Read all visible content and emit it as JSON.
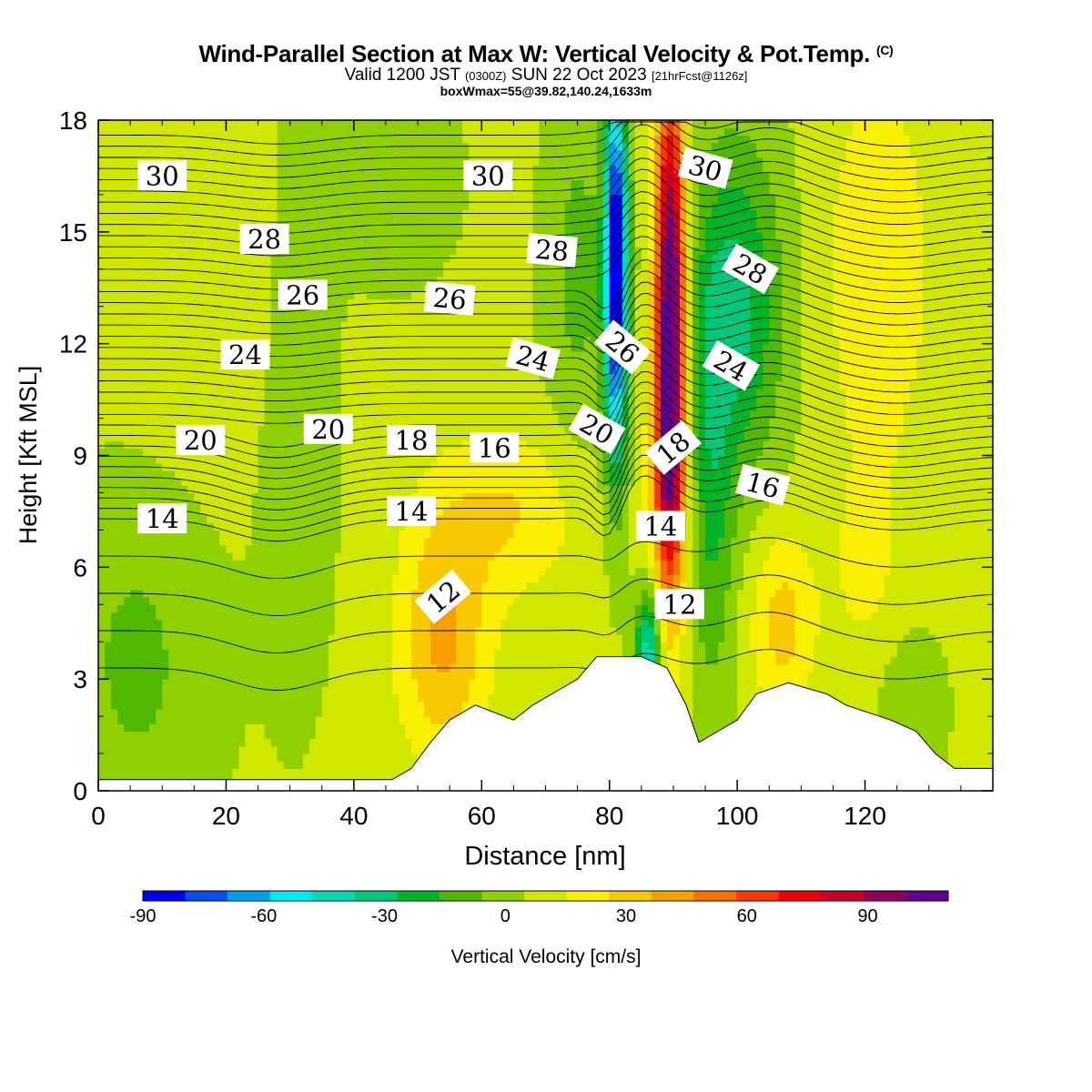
{
  "header": {
    "title_main": "Wind-Parallel Section at Max W: Vertical Velocity & Pot.Temp.",
    "title_copyright": "(C)",
    "valid_prefix": "Valid 1200 JST",
    "valid_zulu": "(0300Z)",
    "valid_date": "SUN 22 Oct 2023",
    "forecast_info": "[21hrFcst@1126z]",
    "box_wmax": "boxWmax=55@39.82,140.24,1633m"
  },
  "chart_data": {
    "type": "heatmap",
    "xlabel": "Distance [nm]",
    "ylabel": "Height [Kft MSL]",
    "xlim": [
      0,
      140
    ],
    "ylim": [
      0,
      18
    ],
    "x_ticks": [
      "0",
      "20",
      "40",
      "60",
      "80",
      "100",
      "120"
    ],
    "y_ticks": [
      "0",
      "3",
      "6",
      "9",
      "12",
      "15",
      "18"
    ],
    "colorbar": {
      "label": "Vertical Velocity [cm/s]",
      "range": [
        -90,
        110
      ],
      "step": 10,
      "tick_labels": [
        "-90",
        "-60",
        "-30",
        "0",
        "30",
        "60",
        "90"
      ],
      "colors": [
        "#0000f0",
        "#0050f0",
        "#00a0f0",
        "#00e8f0",
        "#00d8b0",
        "#00c878",
        "#00b428",
        "#50b800",
        "#90d000",
        "#d0e800",
        "#f8f000",
        "#f8c800",
        "#f8a000",
        "#f87000",
        "#f83800",
        "#f00000",
        "#c80028",
        "#900058",
        "#600090"
      ]
    },
    "theta_contour_labels": [
      "30",
      "28",
      "26",
      "24",
      "20",
      "18",
      "16",
      "14",
      "12"
    ],
    "terrain_kft": [
      [
        0,
        0.3
      ],
      [
        46,
        0.3
      ],
      [
        49,
        0.6
      ],
      [
        52,
        1.3
      ],
      [
        55,
        1.9
      ],
      [
        59,
        2.3
      ],
      [
        65,
        1.9
      ],
      [
        68,
        2.3
      ],
      [
        72,
        2.7
      ],
      [
        75,
        3.0
      ],
      [
        78,
        3.6
      ],
      [
        85,
        3.6
      ],
      [
        89,
        3.3
      ],
      [
        92,
        2.3
      ],
      [
        94,
        1.3
      ],
      [
        97,
        1.6
      ],
      [
        100,
        1.9
      ],
      [
        103,
        2.6
      ],
      [
        108,
        2.9
      ],
      [
        114,
        2.6
      ],
      [
        117,
        2.3
      ],
      [
        124,
        1.9
      ],
      [
        128,
        1.6
      ],
      [
        131,
        1.0
      ],
      [
        134,
        0.6
      ],
      [
        140,
        0.6
      ]
    ]
  }
}
